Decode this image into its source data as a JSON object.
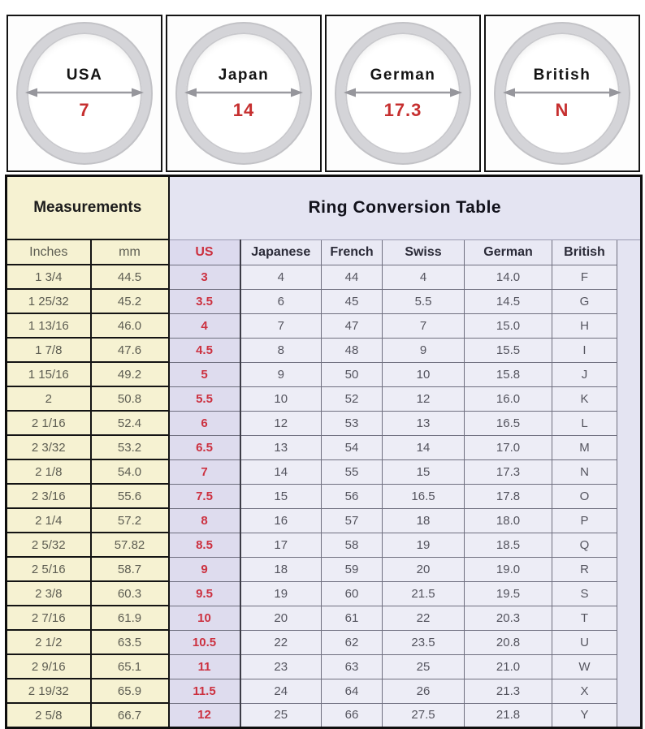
{
  "rings": [
    {
      "label": "USA",
      "size": "7"
    },
    {
      "label": "Japan",
      "size": "14"
    },
    {
      "label": "German",
      "size": "17.3"
    },
    {
      "label": "British",
      "size": "N"
    }
  ],
  "table": {
    "measurements_title": "Measurements",
    "conversion_title": "Ring Conversion Table",
    "columns": {
      "inches": "Inches",
      "mm": "mm",
      "us": "US",
      "japanese": "Japanese",
      "french": "French",
      "swiss": "Swiss",
      "german": "German",
      "british": "British"
    },
    "rows": [
      [
        "1 3/4",
        "44.5",
        "3",
        "4",
        "44",
        "4",
        "14.0",
        "F"
      ],
      [
        "1 25/32",
        "45.2",
        "3.5",
        "6",
        "45",
        "5.5",
        "14.5",
        "G"
      ],
      [
        "1 13/16",
        "46.0",
        "4",
        "7",
        "47",
        "7",
        "15.0",
        "H"
      ],
      [
        "1 7/8",
        "47.6",
        "4.5",
        "8",
        "48",
        "9",
        "15.5",
        "I"
      ],
      [
        "1 15/16",
        "49.2",
        "5",
        "9",
        "50",
        "10",
        "15.8",
        "J"
      ],
      [
        "2",
        "50.8",
        "5.5",
        "10",
        "52",
        "12",
        "16.0",
        "K"
      ],
      [
        "2 1/16",
        "52.4",
        "6",
        "12",
        "53",
        "13",
        "16.5",
        "L"
      ],
      [
        "2 3/32",
        "53.2",
        "6.5",
        "13",
        "54",
        "14",
        "17.0",
        "M"
      ],
      [
        "2 1/8",
        "54.0",
        "7",
        "14",
        "55",
        "15",
        "17.3",
        "N"
      ],
      [
        "2 3/16",
        "55.6",
        "7.5",
        "15",
        "56",
        "16.5",
        "17.8",
        "O"
      ],
      [
        "2 1/4",
        "57.2",
        "8",
        "16",
        "57",
        "18",
        "18.0",
        "P"
      ],
      [
        "2 5/32",
        "57.82",
        "8.5",
        "17",
        "58",
        "19",
        "18.5",
        "Q"
      ],
      [
        "2 5/16",
        "58.7",
        "9",
        "18",
        "59",
        "20",
        "19.0",
        "R"
      ],
      [
        "2 3/8",
        "60.3",
        "9.5",
        "19",
        "60",
        "21.5",
        "19.5",
        "S"
      ],
      [
        "2 7/16",
        "61.9",
        "10",
        "20",
        "61",
        "22",
        "20.3",
        "T"
      ],
      [
        "2 1/2",
        "63.5",
        "10.5",
        "22",
        "62",
        "23.5",
        "20.8",
        "U"
      ],
      [
        "2 9/16",
        "65.1",
        "11",
        "23",
        "63",
        "25",
        "21.0",
        "W"
      ],
      [
        "2 19/32",
        "65.9",
        "11.5",
        "24",
        "64",
        "26",
        "21.3",
        "X"
      ],
      [
        "2 5/8",
        "66.7",
        "12",
        "25",
        "66",
        "27.5",
        "21.8",
        "Y"
      ]
    ]
  },
  "colors": {
    "accent_red": "#cc3140",
    "cream": "#f6f2d2",
    "lavender_header": "#e4e4f2",
    "us_column": "#dedcee",
    "data_cell": "#ededf6",
    "border_black": "#141414",
    "border_gray": "#6f6f7f"
  },
  "icons": {
    "diameter_arrow": "double-headed-horizontal-arrow"
  }
}
